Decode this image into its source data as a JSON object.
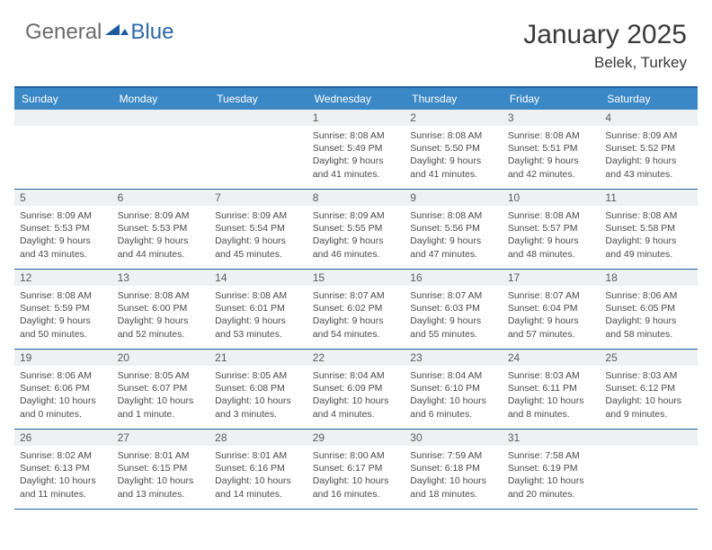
{
  "brand": {
    "part1": "General",
    "part2": "Blue"
  },
  "title": "January 2025",
  "location": "Belek, Turkey",
  "colors": {
    "header_bg": "#3b88c6",
    "border": "#1b5f9e",
    "daynum_bg": "#eef0f2",
    "text": "#4a4a4a"
  },
  "dayNames": [
    "Sunday",
    "Monday",
    "Tuesday",
    "Wednesday",
    "Thursday",
    "Friday",
    "Saturday"
  ],
  "weeks": [
    [
      {
        "n": "",
        "sr": "",
        "ss": "",
        "dl": ""
      },
      {
        "n": "",
        "sr": "",
        "ss": "",
        "dl": ""
      },
      {
        "n": "",
        "sr": "",
        "ss": "",
        "dl": ""
      },
      {
        "n": "1",
        "sr": "Sunrise: 8:08 AM",
        "ss": "Sunset: 5:49 PM",
        "dl": "Daylight: 9 hours and 41 minutes."
      },
      {
        "n": "2",
        "sr": "Sunrise: 8:08 AM",
        "ss": "Sunset: 5:50 PM",
        "dl": "Daylight: 9 hours and 41 minutes."
      },
      {
        "n": "3",
        "sr": "Sunrise: 8:08 AM",
        "ss": "Sunset: 5:51 PM",
        "dl": "Daylight: 9 hours and 42 minutes."
      },
      {
        "n": "4",
        "sr": "Sunrise: 8:09 AM",
        "ss": "Sunset: 5:52 PM",
        "dl": "Daylight: 9 hours and 43 minutes."
      }
    ],
    [
      {
        "n": "5",
        "sr": "Sunrise: 8:09 AM",
        "ss": "Sunset: 5:53 PM",
        "dl": "Daylight: 9 hours and 43 minutes."
      },
      {
        "n": "6",
        "sr": "Sunrise: 8:09 AM",
        "ss": "Sunset: 5:53 PM",
        "dl": "Daylight: 9 hours and 44 minutes."
      },
      {
        "n": "7",
        "sr": "Sunrise: 8:09 AM",
        "ss": "Sunset: 5:54 PM",
        "dl": "Daylight: 9 hours and 45 minutes."
      },
      {
        "n": "8",
        "sr": "Sunrise: 8:09 AM",
        "ss": "Sunset: 5:55 PM",
        "dl": "Daylight: 9 hours and 46 minutes."
      },
      {
        "n": "9",
        "sr": "Sunrise: 8:08 AM",
        "ss": "Sunset: 5:56 PM",
        "dl": "Daylight: 9 hours and 47 minutes."
      },
      {
        "n": "10",
        "sr": "Sunrise: 8:08 AM",
        "ss": "Sunset: 5:57 PM",
        "dl": "Daylight: 9 hours and 48 minutes."
      },
      {
        "n": "11",
        "sr": "Sunrise: 8:08 AM",
        "ss": "Sunset: 5:58 PM",
        "dl": "Daylight: 9 hours and 49 minutes."
      }
    ],
    [
      {
        "n": "12",
        "sr": "Sunrise: 8:08 AM",
        "ss": "Sunset: 5:59 PM",
        "dl": "Daylight: 9 hours and 50 minutes."
      },
      {
        "n": "13",
        "sr": "Sunrise: 8:08 AM",
        "ss": "Sunset: 6:00 PM",
        "dl": "Daylight: 9 hours and 52 minutes."
      },
      {
        "n": "14",
        "sr": "Sunrise: 8:08 AM",
        "ss": "Sunset: 6:01 PM",
        "dl": "Daylight: 9 hours and 53 minutes."
      },
      {
        "n": "15",
        "sr": "Sunrise: 8:07 AM",
        "ss": "Sunset: 6:02 PM",
        "dl": "Daylight: 9 hours and 54 minutes."
      },
      {
        "n": "16",
        "sr": "Sunrise: 8:07 AM",
        "ss": "Sunset: 6:03 PM",
        "dl": "Daylight: 9 hours and 55 minutes."
      },
      {
        "n": "17",
        "sr": "Sunrise: 8:07 AM",
        "ss": "Sunset: 6:04 PM",
        "dl": "Daylight: 9 hours and 57 minutes."
      },
      {
        "n": "18",
        "sr": "Sunrise: 8:06 AM",
        "ss": "Sunset: 6:05 PM",
        "dl": "Daylight: 9 hours and 58 minutes."
      }
    ],
    [
      {
        "n": "19",
        "sr": "Sunrise: 8:06 AM",
        "ss": "Sunset: 6:06 PM",
        "dl": "Daylight: 10 hours and 0 minutes."
      },
      {
        "n": "20",
        "sr": "Sunrise: 8:05 AM",
        "ss": "Sunset: 6:07 PM",
        "dl": "Daylight: 10 hours and 1 minute."
      },
      {
        "n": "21",
        "sr": "Sunrise: 8:05 AM",
        "ss": "Sunset: 6:08 PM",
        "dl": "Daylight: 10 hours and 3 minutes."
      },
      {
        "n": "22",
        "sr": "Sunrise: 8:04 AM",
        "ss": "Sunset: 6:09 PM",
        "dl": "Daylight: 10 hours and 4 minutes."
      },
      {
        "n": "23",
        "sr": "Sunrise: 8:04 AM",
        "ss": "Sunset: 6:10 PM",
        "dl": "Daylight: 10 hours and 6 minutes."
      },
      {
        "n": "24",
        "sr": "Sunrise: 8:03 AM",
        "ss": "Sunset: 6:11 PM",
        "dl": "Daylight: 10 hours and 8 minutes."
      },
      {
        "n": "25",
        "sr": "Sunrise: 8:03 AM",
        "ss": "Sunset: 6:12 PM",
        "dl": "Daylight: 10 hours and 9 minutes."
      }
    ],
    [
      {
        "n": "26",
        "sr": "Sunrise: 8:02 AM",
        "ss": "Sunset: 6:13 PM",
        "dl": "Daylight: 10 hours and 11 minutes."
      },
      {
        "n": "27",
        "sr": "Sunrise: 8:01 AM",
        "ss": "Sunset: 6:15 PM",
        "dl": "Daylight: 10 hours and 13 minutes."
      },
      {
        "n": "28",
        "sr": "Sunrise: 8:01 AM",
        "ss": "Sunset: 6:16 PM",
        "dl": "Daylight: 10 hours and 14 minutes."
      },
      {
        "n": "29",
        "sr": "Sunrise: 8:00 AM",
        "ss": "Sunset: 6:17 PM",
        "dl": "Daylight: 10 hours and 16 minutes."
      },
      {
        "n": "30",
        "sr": "Sunrise: 7:59 AM",
        "ss": "Sunset: 6:18 PM",
        "dl": "Daylight: 10 hours and 18 minutes."
      },
      {
        "n": "31",
        "sr": "Sunrise: 7:58 AM",
        "ss": "Sunset: 6:19 PM",
        "dl": "Daylight: 10 hours and 20 minutes."
      },
      {
        "n": "",
        "sr": "",
        "ss": "",
        "dl": ""
      }
    ]
  ]
}
